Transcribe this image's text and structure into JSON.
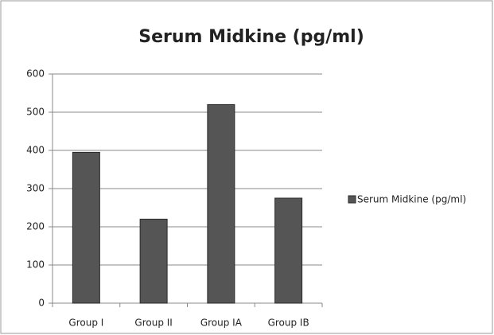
{
  "chart_data": {
    "type": "bar",
    "title": "Serum Midkine (pg/ml)",
    "categories": [
      "Group I",
      "Group II",
      "Group IA",
      "Group IB"
    ],
    "series": [
      {
        "name": "Serum Midkine (pg/ml)",
        "color": "#555555",
        "values": [
          395,
          220,
          520,
          275
        ]
      }
    ],
    "ylim": [
      0,
      600
    ],
    "yticks": [
      0,
      100,
      200,
      300,
      400,
      500,
      600
    ],
    "grid": true,
    "legend": "right"
  }
}
